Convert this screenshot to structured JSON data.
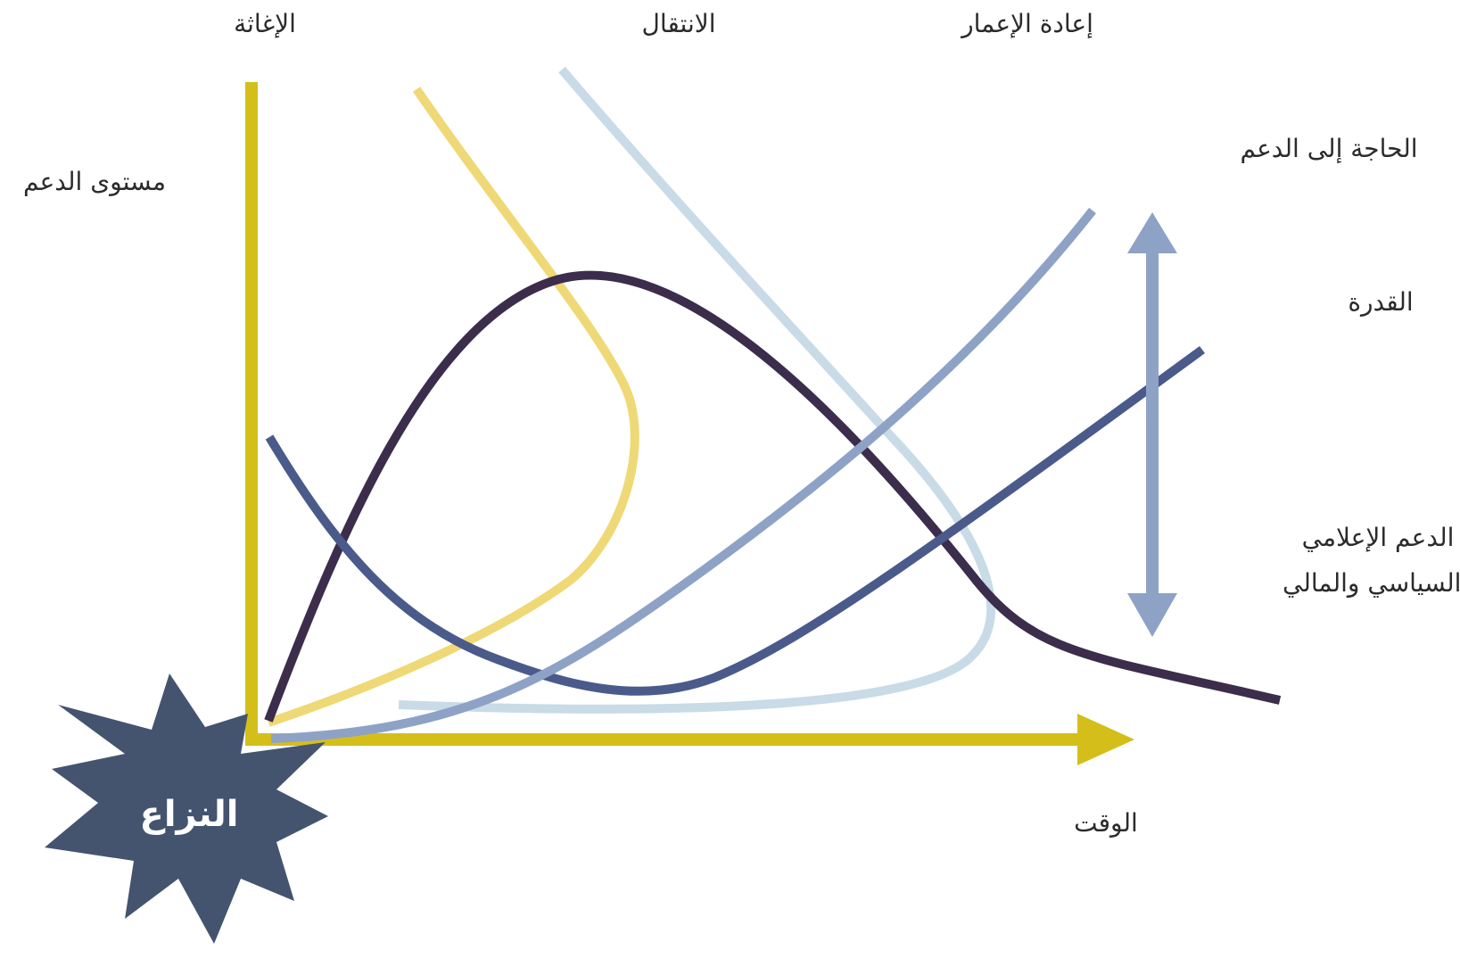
{
  "labels": {
    "phase_relief": "الإغاثة",
    "phase_transition": "الانتقال",
    "phase_reconstruction": "إعادة الإعمار",
    "y_axis": "مستوى الدعم",
    "x_axis": "الوقت",
    "need_for_support": "الحاجة إلى الدعم",
    "capacity": "القدرة",
    "support_line1": "الدعم الإعلامي",
    "support_line2": "والسياسي والمالي",
    "conflict": "النزاع"
  },
  "colors": {
    "axis": "#d4bf1a",
    "relief_curve": "#efd977",
    "transition_curve": "#c8dbe6",
    "need_curve": "#3b2d4b",
    "decline_curve": "#4a5a8a",
    "capacity_curve": "#8ea2c6",
    "arrow": "#8ea2c6",
    "burst": "#44546f"
  }
}
